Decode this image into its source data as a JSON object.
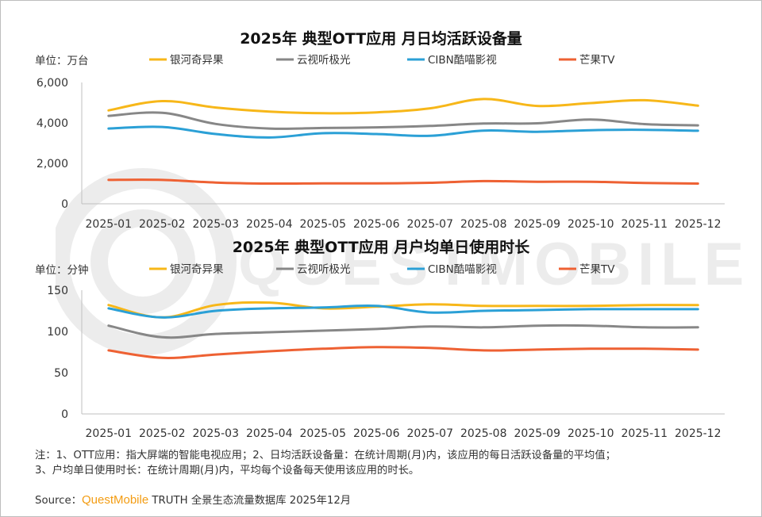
{
  "chart_data": [
    {
      "type": "line",
      "title": "2025年 典型OTT应用 月日均活跃设备量",
      "unit_label": "单位：万台",
      "categories": [
        "2025-01",
        "2025-02",
        "2025-03",
        "2025-04",
        "2025-05",
        "2025-06",
        "2025-07",
        "2025-08",
        "2025-09",
        "2025-10",
        "2025-11",
        "2025-12"
      ],
      "ylim": [
        0,
        6000
      ],
      "yticks": [
        0,
        2000,
        4000,
        6000
      ],
      "ytick_labels": [
        "0",
        "2,000",
        "4,000",
        "6,000"
      ],
      "legend_position": "top",
      "series": [
        {
          "name": "银河奇异果",
          "color": "#f7b719",
          "values": [
            4620,
            5080,
            4760,
            4560,
            4480,
            4520,
            4720,
            5180,
            4840,
            4980,
            5120,
            4850
          ]
        },
        {
          "name": "云视听极光",
          "color": "#878787",
          "values": [
            4350,
            4500,
            3950,
            3720,
            3750,
            3780,
            3850,
            3970,
            3980,
            4170,
            3940,
            3880
          ]
        },
        {
          "name": "CIBN酷喵影视",
          "color": "#2ba0d6",
          "values": [
            3720,
            3800,
            3450,
            3280,
            3490,
            3450,
            3360,
            3620,
            3560,
            3640,
            3660,
            3610
          ]
        },
        {
          "name": "芒果TV",
          "color": "#ee6133",
          "values": [
            1180,
            1180,
            1050,
            1000,
            1010,
            1010,
            1040,
            1120,
            1090,
            1090,
            1030,
            1000
          ]
        }
      ]
    },
    {
      "type": "line",
      "title": "2025年 典型OTT应用 月户均单日使用时长",
      "unit_label": "单位：分钟",
      "categories": [
        "2025-01",
        "2025-02",
        "2025-03",
        "2025-04",
        "2025-05",
        "2025-06",
        "2025-07",
        "2025-08",
        "2025-09",
        "2025-10",
        "2025-11",
        "2025-12"
      ],
      "ylim": [
        0,
        150
      ],
      "yticks": [
        0,
        50,
        100,
        150
      ],
      "ytick_labels": [
        "0",
        "50",
        "100",
        "150"
      ],
      "legend_position": "top",
      "series": [
        {
          "name": "银河奇异果",
          "color": "#f7b719",
          "values": [
            132,
            117,
            132,
            135,
            128,
            130,
            133,
            131,
            131,
            131,
            132,
            132
          ]
        },
        {
          "name": "云视听极光",
          "color": "#878787",
          "values": [
            107,
            93,
            97,
            99,
            101,
            103,
            106,
            105,
            107,
            107,
            105,
            105
          ]
        },
        {
          "name": "CIBN酷喵影视",
          "color": "#2ba0d6",
          "values": [
            128,
            117,
            125,
            128,
            129,
            131,
            123,
            125,
            126,
            127,
            127,
            127
          ]
        },
        {
          "name": "芒果TV",
          "color": "#ee6133",
          "values": [
            77,
            68,
            72,
            76,
            79,
            81,
            80,
            77,
            78,
            79,
            79,
            78
          ]
        }
      ]
    }
  ],
  "watermark": "QUESTMOBILE",
  "notes": {
    "line1": "注：1、OTT应用：指大屏端的智能电视应用；2、日均活跃设备量：在统计周期(月)内，该应用的每日活跃设备量的平均值；",
    "line2": "3、户均单日使用时长：在统计周期(月)内，平均每个设备每天使用该应用的时长。"
  },
  "source": {
    "prefix": "Source：",
    "brand": "QuestMobile",
    "suffix": " TRUTH 全景生态流量数据库 2025年12月"
  },
  "colors": {
    "brand": "#f39c12",
    "axis": "#bfbfbf"
  }
}
